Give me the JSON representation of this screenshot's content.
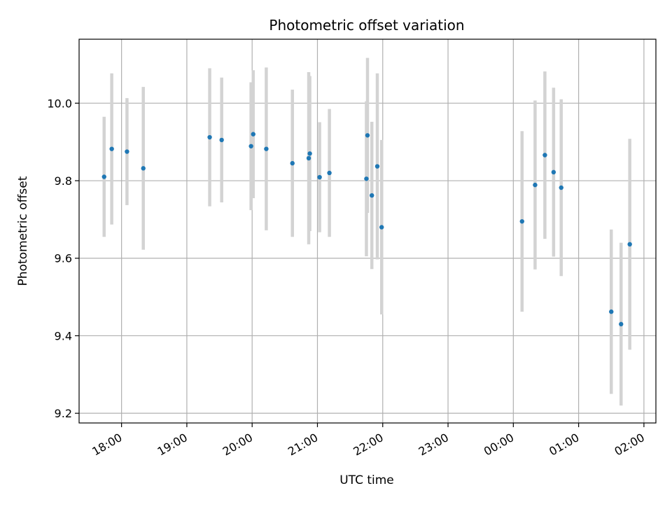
{
  "chart_data": {
    "type": "scatter",
    "title": "Photometric offset variation",
    "xlabel": "UTC time",
    "ylabel": "Photometric offset",
    "x_tick_labels": [
      "18:00",
      "19:00",
      "20:00",
      "21:00",
      "22:00",
      "23:00",
      "00:00",
      "01:00",
      "02:00"
    ],
    "x_tick_values": [
      "17:59",
      "18:59",
      "19:59",
      "20:59",
      "21:59",
      "22:59",
      "23:59",
      "00:59",
      "01:59"
    ],
    "y_tick_values": [
      9.2,
      9.4,
      9.6,
      9.8,
      10.0
    ],
    "y_tick_labels": [
      "9.2",
      "9.4",
      "9.6",
      "9.8",
      "10.0"
    ],
    "xlim": [
      "17:20",
      "02:10"
    ],
    "ylim": [
      9.175,
      10.165
    ],
    "grid": true,
    "point_color": "#1f77b4",
    "errorbar_color": "#d3d3d3",
    "points": [
      {
        "x": "17:43",
        "y": 9.81,
        "err": 0.155
      },
      {
        "x": "17:50",
        "y": 9.882,
        "err": 0.195
      },
      {
        "x": "18:04",
        "y": 9.875,
        "err": 0.138
      },
      {
        "x": "18:19",
        "y": 9.832,
        "err": 0.21
      },
      {
        "x": "19:20",
        "y": 9.912,
        "err": 0.178
      },
      {
        "x": "19:31",
        "y": 9.905,
        "err": 0.161
      },
      {
        "x": "19:58",
        "y": 9.889,
        "err": 0.165
      },
      {
        "x": "20:00",
        "y": 9.92,
        "err": 0.165
      },
      {
        "x": "20:12",
        "y": 9.882,
        "err": 0.21
      },
      {
        "x": "20:36",
        "y": 9.845,
        "err": 0.19
      },
      {
        "x": "20:51",
        "y": 9.858,
        "err": 0.222
      },
      {
        "x": "20:52",
        "y": 9.87,
        "err": 0.2
      },
      {
        "x": "21:01",
        "y": 9.809,
        "err": 0.142
      },
      {
        "x": "21:10",
        "y": 9.82,
        "err": 0.165
      },
      {
        "x": "21:44",
        "y": 9.805,
        "err": 0.2
      },
      {
        "x": "21:45",
        "y": 9.917,
        "err": 0.2
      },
      {
        "x": "21:49",
        "y": 9.762,
        "err": 0.19
      },
      {
        "x": "21:54",
        "y": 9.837,
        "err": 0.24
      },
      {
        "x": "21:58",
        "y": 9.68,
        "err": 0.225
      },
      {
        "x": "00:07",
        "y": 9.695,
        "err": 0.233
      },
      {
        "x": "00:19",
        "y": 9.789,
        "err": 0.218
      },
      {
        "x": "00:28",
        "y": 9.866,
        "err": 0.216
      },
      {
        "x": "00:36",
        "y": 9.822,
        "err": 0.218
      },
      {
        "x": "00:43",
        "y": 9.782,
        "err": 0.228
      },
      {
        "x": "01:29",
        "y": 9.462,
        "err": 0.212
      },
      {
        "x": "01:38",
        "y": 9.43,
        "err": 0.21
      },
      {
        "x": "01:46",
        "y": 9.636,
        "err": 0.272
      }
    ]
  }
}
